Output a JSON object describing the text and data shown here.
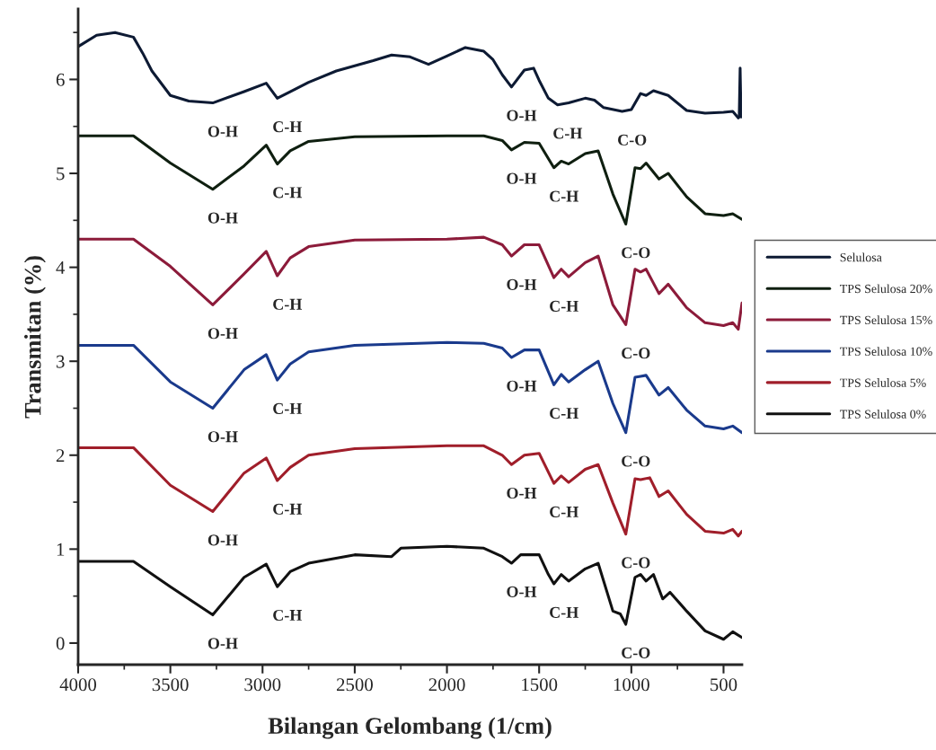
{
  "chart_data": {
    "type": "line",
    "xlabel": "Bilangan Gelombang (1/cm)",
    "ylabel": "Transmitan (%)",
    "xlim": [
      4000,
      400
    ],
    "ylim": [
      -0.23,
      6.75
    ],
    "xticks": [
      4000,
      3500,
      3000,
      2500,
      2000,
      1500,
      1000,
      500
    ],
    "yticks": [
      0,
      1,
      2,
      3,
      4,
      5,
      6
    ],
    "grid": false,
    "legend": "right",
    "marker": "none",
    "line_style": "solid",
    "series": [
      {
        "name": "Selulosa",
        "color": "#0d1a33",
        "x": [
          4000,
          3900,
          3800,
          3700,
          3650,
          3600,
          3500,
          3400,
          3270,
          3100,
          2980,
          2920,
          2850,
          2750,
          2600,
          2400,
          2300,
          2200,
          2100,
          2000,
          1900,
          1800,
          1750,
          1700,
          1650,
          1580,
          1530,
          1500,
          1450,
          1400,
          1340,
          1250,
          1200,
          1150,
          1050,
          1000,
          950,
          920,
          880,
          800,
          700,
          600,
          500,
          450,
          420,
          415,
          410,
          405,
          400
        ],
        "values": [
          6.35,
          6.47,
          6.5,
          6.45,
          6.28,
          6.09,
          5.83,
          5.77,
          5.75,
          5.87,
          5.96,
          5.8,
          5.87,
          5.97,
          6.09,
          6.2,
          6.26,
          6.24,
          6.16,
          6.25,
          6.34,
          6.3,
          6.21,
          6.05,
          5.92,
          6.1,
          6.12,
          5.99,
          5.8,
          5.73,
          5.75,
          5.8,
          5.78,
          5.7,
          5.66,
          5.68,
          5.85,
          5.83,
          5.88,
          5.83,
          5.67,
          5.64,
          5.65,
          5.66,
          5.59,
          5.6,
          6.12,
          5.6,
          5.63
        ]
      },
      {
        "name": "TPS Selulosa 20%",
        "color": "#0f1f10",
        "x": [
          4000,
          3700,
          3500,
          3270,
          3100,
          2980,
          2920,
          2850,
          2750,
          2500,
          2000,
          1800,
          1700,
          1650,
          1580,
          1500,
          1420,
          1380,
          1340,
          1250,
          1180,
          1100,
          1030,
          980,
          950,
          920,
          850,
          800,
          700,
          600,
          500,
          450,
          400
        ],
        "values": [
          5.4,
          5.4,
          5.11,
          4.83,
          5.08,
          5.3,
          5.1,
          5.24,
          5.34,
          5.39,
          5.4,
          5.4,
          5.35,
          5.25,
          5.33,
          5.32,
          5.06,
          5.13,
          5.1,
          5.21,
          5.24,
          4.78,
          4.46,
          5.06,
          5.05,
          5.11,
          4.94,
          5.0,
          4.75,
          4.57,
          4.55,
          4.57,
          4.51
        ]
      },
      {
        "name": "TPS Selulosa 15%",
        "color": "#8c1b3a",
        "x": [
          4000,
          3700,
          3500,
          3270,
          3100,
          2980,
          2920,
          2850,
          2750,
          2500,
          2000,
          1800,
          1700,
          1650,
          1580,
          1500,
          1420,
          1380,
          1340,
          1250,
          1180,
          1100,
          1030,
          980,
          950,
          920,
          850,
          800,
          700,
          600,
          500,
          450,
          420,
          400
        ],
        "values": [
          4.3,
          4.3,
          4.01,
          3.6,
          3.93,
          4.17,
          3.91,
          4.1,
          4.22,
          4.29,
          4.3,
          4.32,
          4.24,
          4.12,
          4.24,
          4.24,
          3.89,
          3.98,
          3.9,
          4.05,
          4.12,
          3.6,
          3.39,
          3.98,
          3.95,
          3.98,
          3.72,
          3.82,
          3.57,
          3.41,
          3.38,
          3.41,
          3.34,
          3.62
        ]
      },
      {
        "name": "TPS Selulosa 10%",
        "color": "#1a3a8c",
        "x": [
          4000,
          3700,
          3500,
          3270,
          3100,
          2980,
          2920,
          2850,
          2750,
          2500,
          2000,
          1800,
          1700,
          1650,
          1580,
          1500,
          1420,
          1380,
          1340,
          1250,
          1180,
          1100,
          1030,
          980,
          950,
          920,
          850,
          800,
          700,
          600,
          500,
          450,
          400
        ],
        "values": [
          3.17,
          3.17,
          2.78,
          2.5,
          2.91,
          3.07,
          2.8,
          2.97,
          3.1,
          3.17,
          3.2,
          3.19,
          3.14,
          3.04,
          3.12,
          3.12,
          2.75,
          2.86,
          2.78,
          2.91,
          3.0,
          2.55,
          2.24,
          2.83,
          2.84,
          2.85,
          2.64,
          2.72,
          2.48,
          2.31,
          2.28,
          2.31,
          2.24
        ]
      },
      {
        "name": "TPS Selulosa 5%",
        "color": "#a01e2a",
        "x": [
          4000,
          3700,
          3500,
          3270,
          3100,
          2980,
          2920,
          2850,
          2750,
          2500,
          2000,
          1800,
          1700,
          1650,
          1580,
          1500,
          1420,
          1380,
          1340,
          1250,
          1180,
          1100,
          1030,
          980,
          950,
          900,
          850,
          800,
          700,
          600,
          500,
          450,
          420,
          400
        ],
        "values": [
          2.08,
          2.08,
          1.68,
          1.4,
          1.81,
          1.97,
          1.73,
          1.87,
          2.0,
          2.07,
          2.1,
          2.1,
          2.0,
          1.9,
          2.0,
          2.02,
          1.7,
          1.78,
          1.71,
          1.85,
          1.9,
          1.49,
          1.16,
          1.75,
          1.74,
          1.76,
          1.56,
          1.62,
          1.37,
          1.19,
          1.17,
          1.21,
          1.14,
          1.19
        ]
      },
      {
        "name": "TPS Selulosa 0%",
        "color": "#111111",
        "x": [
          4000,
          3700,
          3500,
          3270,
          3100,
          2980,
          2920,
          2850,
          2750,
          2500,
          2300,
          2250,
          2000,
          1800,
          1700,
          1650,
          1600,
          1500,
          1450,
          1420,
          1380,
          1340,
          1250,
          1180,
          1100,
          1060,
          1030,
          980,
          950,
          920,
          880,
          830,
          790,
          700,
          600,
          500,
          450,
          400
        ],
        "values": [
          0.87,
          0.87,
          0.6,
          0.3,
          0.7,
          0.84,
          0.6,
          0.76,
          0.85,
          0.94,
          0.92,
          1.01,
          1.03,
          1.01,
          0.92,
          0.85,
          0.94,
          0.94,
          0.73,
          0.63,
          0.73,
          0.66,
          0.79,
          0.85,
          0.34,
          0.31,
          0.2,
          0.7,
          0.73,
          0.66,
          0.73,
          0.47,
          0.54,
          0.34,
          0.13,
          0.04,
          0.12,
          0.06
        ]
      }
    ],
    "annotations": [
      {
        "text": "O-H",
        "x": 3270,
        "y": 5.75
      },
      {
        "text": "C-H",
        "x": 2920,
        "y": 5.8
      },
      {
        "text": "O-H",
        "x": 1650,
        "y": 5.92
      },
      {
        "text": "C-H",
        "x": 1400,
        "y": 5.73
      },
      {
        "text": "C-O",
        "x": 1050,
        "y": 5.66
      },
      {
        "text": "O-H",
        "x": 3270,
        "y": 4.83
      },
      {
        "text": "C-H",
        "x": 2920,
        "y": 5.1
      },
      {
        "text": "O-H",
        "x": 1650,
        "y": 5.25
      },
      {
        "text": "C-H",
        "x": 1420,
        "y": 5.06
      },
      {
        "text": "C-O",
        "x": 1030,
        "y": 4.46
      },
      {
        "text": "O-H",
        "x": 3270,
        "y": 3.6
      },
      {
        "text": "C-H",
        "x": 2920,
        "y": 3.91
      },
      {
        "text": "O-H",
        "x": 1650,
        "y": 4.12
      },
      {
        "text": "C-H",
        "x": 1420,
        "y": 3.89
      },
      {
        "text": "C-O",
        "x": 1030,
        "y": 3.39
      },
      {
        "text": "O-H",
        "x": 3270,
        "y": 2.5
      },
      {
        "text": "C-H",
        "x": 2920,
        "y": 2.8
      },
      {
        "text": "O-H",
        "x": 1650,
        "y": 3.04
      },
      {
        "text": "C-H",
        "x": 1420,
        "y": 2.75
      },
      {
        "text": "C-O",
        "x": 1030,
        "y": 2.24
      },
      {
        "text": "O-H",
        "x": 3270,
        "y": 1.4
      },
      {
        "text": "C-H",
        "x": 2920,
        "y": 1.73
      },
      {
        "text": "O-H",
        "x": 1650,
        "y": 1.9
      },
      {
        "text": "C-H",
        "x": 1420,
        "y": 1.7
      },
      {
        "text": "C-O",
        "x": 1030,
        "y": 1.16
      },
      {
        "text": "O-H",
        "x": 3270,
        "y": 0.3
      },
      {
        "text": "C-H",
        "x": 2920,
        "y": 0.6
      },
      {
        "text": "O-H",
        "x": 1650,
        "y": 0.85
      },
      {
        "text": "C-H",
        "x": 1420,
        "y": 0.63
      },
      {
        "text": "C-O",
        "x": 1030,
        "y": 0.2
      }
    ]
  }
}
